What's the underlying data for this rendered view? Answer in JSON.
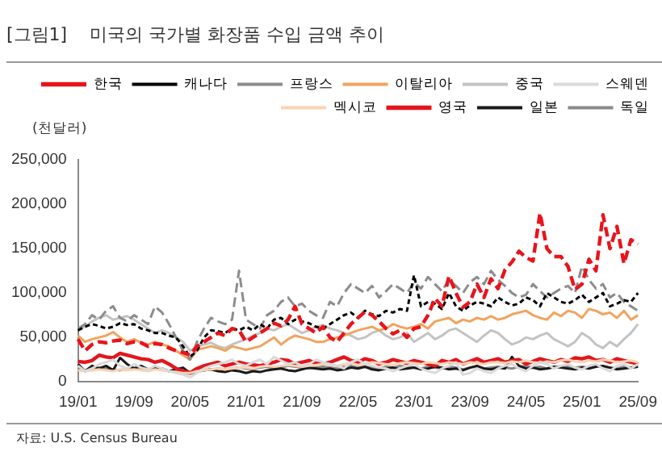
{
  "chart_data": {
    "type": "line",
    "title": "[그림1]    미국의 국가별 화장품 수입 금액 추이",
    "ylabel": "(천달러)",
    "annotations": [
      "자료: U.S. Census Bureau"
    ],
    "categories": [
      "19/01",
      null,
      null,
      null,
      null,
      null,
      null,
      null,
      "19/09",
      null,
      null,
      null,
      null,
      null,
      null,
      null,
      "20/05",
      null,
      null,
      null,
      null,
      null,
      null,
      null,
      "21/01",
      null,
      null,
      null,
      null,
      null,
      null,
      null,
      "21/09",
      null,
      null,
      null,
      null,
      null,
      null,
      null,
      "22/05",
      null,
      null,
      null,
      null,
      null,
      null,
      null,
      "23/01",
      null,
      null,
      null,
      null,
      null,
      null,
      null,
      "23/09",
      null,
      null,
      null,
      null,
      null,
      null,
      null,
      "24/05",
      null,
      null,
      null,
      null,
      null,
      null,
      null,
      "25/01",
      null,
      null,
      null,
      null,
      null,
      null,
      null,
      "25/09"
    ],
    "ylim": [
      0,
      250000
    ],
    "yticks": [
      0,
      {
        "value": 50000,
        "label": "50,000"
      },
      {
        "value": 100000,
        "label": "100,000"
      },
      {
        "value": 150000,
        "label": "150,000"
      },
      {
        "value": 200000,
        "label": "200,000"
      },
      {
        "value": 250000,
        "label": "250,000"
      }
    ],
    "grid": false,
    "legend": "top",
    "marker": "none",
    "series": [
      {
        "name": "한국",
        "color": "#e8141c",
        "line_style": "dashed",
        "values": [
          48000,
          35000,
          42000,
          45000,
          44000,
          46000,
          47000,
          43000,
          45000,
          44000,
          40000,
          43000,
          42000,
          38000,
          35000,
          33000,
          30000,
          40000,
          45000,
          50000,
          55000,
          52000,
          60000,
          58000,
          45000,
          50000,
          55000,
          60000,
          66000,
          63000,
          70000,
          85000,
          65000,
          60000,
          55000,
          62000,
          50000,
          45000,
          55000,
          65000,
          72000,
          79000,
          75000,
          68000,
          60000,
          54000,
          58000,
          50000,
          60000,
          62000,
          75000,
          94000,
          85000,
          119000,
          100000,
          84000,
          90000,
          110000,
          95000,
          116000,
          105000,
          126000,
          135000,
          147000,
          140000,
          136000,
          190000,
          150000,
          141000,
          141000,
          130000,
          104000,
          110000,
          138000,
          125000,
          188000,
          150000,
          175000,
          133000,
          160000,
          155000
        ]
      },
      {
        "name": "캐나다",
        "color": "#000000",
        "line_style": "dotted",
        "values": [
          58000,
          62000,
          65000,
          63000,
          60000,
          62000,
          66000,
          64000,
          65000,
          60000,
          58000,
          55000,
          55000,
          52000,
          50000,
          40000,
          28000,
          35000,
          50000,
          58000,
          57000,
          55000,
          60000,
          58000,
          62000,
          58000,
          65000,
          60000,
          70000,
          72000,
          65000,
          70000,
          68000,
          66000,
          62000,
          60000,
          65000,
          70000,
          75000,
          78000,
          72000,
          80000,
          76000,
          74000,
          80000,
          78000,
          82000,
          80000,
          120000,
          85000,
          90000,
          88000,
          82000,
          100000,
          85000,
          80000,
          86000,
          90000,
          88000,
          85000,
          95000,
          90000,
          86000,
          88000,
          95000,
          92000,
          85000,
          100000,
          95000,
          90000,
          88000,
          92000,
          98000,
          90000,
          95000,
          100000,
          85000,
          88000,
          92000,
          90000,
          100000
        ]
      },
      {
        "name": "프랑스",
        "color": "#8c8c8c",
        "line_style": "dashed",
        "values": [
          60000,
          65000,
          75000,
          70000,
          80000,
          85000,
          72000,
          68000,
          75000,
          70000,
          65000,
          85000,
          78000,
          65000,
          50000,
          35000,
          25000,
          45000,
          60000,
          72000,
          68000,
          65000,
          70000,
          125000,
          70000,
          65000,
          60000,
          75000,
          80000,
          90000,
          95000,
          85000,
          88000,
          80000,
          75000,
          72000,
          90000,
          85000,
          100000,
          110000,
          105000,
          100000,
          108000,
          95000,
          102000,
          110000,
          105000,
          100000,
          112000,
          105000,
          118000,
          110000,
          102000,
          115000,
          108000,
          100000,
          112000,
          118000,
          110000,
          125000,
          115000,
          108000,
          100000,
          95000,
          98000,
          110000,
          102000,
          95000,
          100000,
          105000,
          108000,
          100000,
          130000,
          115000,
          105000,
          110000,
          95000,
          100000,
          90000,
          85000,
          80000
        ]
      },
      {
        "name": "이탈리아",
        "color": "#f2a35e",
        "line_style": "solid",
        "values": [
          52000,
          45000,
          48000,
          50000,
          52000,
          56000,
          50000,
          45000,
          48000,
          44000,
          42000,
          45000,
          42000,
          40000,
          35000,
          30000,
          25000,
          36000,
          38000,
          40000,
          38000,
          35000,
          40000,
          38000,
          36000,
          38000,
          40000,
          45000,
          50000,
          42000,
          48000,
          52000,
          50000,
          48000,
          45000,
          45000,
          48000,
          50000,
          52000,
          55000,
          58000,
          60000,
          62000,
          58000,
          60000,
          65000,
          62000,
          60000,
          62000,
          65000,
          60000,
          68000,
          70000,
          72000,
          66000,
          70000,
          68000,
          72000,
          70000,
          74000,
          70000,
          72000,
          76000,
          78000,
          80000,
          75000,
          72000,
          70000,
          78000,
          74000,
          80000,
          78000,
          72000,
          82000,
          80000,
          76000,
          78000,
          72000,
          80000,
          70000,
          75000
        ]
      },
      {
        "name": "중국",
        "color": "#c3c3c3",
        "line_style": "solid",
        "values": [
          60000,
          62000,
          68000,
          72000,
          75000,
          70000,
          72000,
          74000,
          70000,
          65000,
          60000,
          55000,
          58000,
          55000,
          50000,
          45000,
          35000,
          40000,
          42000,
          44000,
          40000,
          38000,
          42000,
          45000,
          48000,
          52000,
          55000,
          60000,
          58000,
          62000,
          65000,
          60000,
          55000,
          58000,
          62000,
          64000,
          60000,
          58000,
          55000,
          52000,
          48000,
          50000,
          55000,
          58000,
          52000,
          48000,
          50000,
          55000,
          45000,
          50000,
          55000,
          48000,
          52000,
          58000,
          60000,
          55000,
          50000,
          45000,
          52000,
          58000,
          55000,
          48000,
          42000,
          45000,
          50000,
          48000,
          52000,
          55000,
          48000,
          44000,
          40000,
          45000,
          55000,
          50000,
          42000,
          38000,
          45000,
          40000,
          48000,
          55000,
          65000
        ]
      },
      {
        "name": "스웨덴",
        "color": "#dadada",
        "line_style": "solid",
        "values": [
          18000,
          12000,
          15000,
          20000,
          22000,
          25000,
          18000,
          15000,
          20000,
          16000,
          14000,
          18000,
          15000,
          12000,
          10000,
          8000,
          5000,
          10000,
          15000,
          18000,
          20000,
          22000,
          25000,
          20000,
          18000,
          22000,
          25000,
          20000,
          28000,
          24000,
          20000,
          22000,
          18000,
          20000,
          25000,
          22000,
          20000,
          18000,
          15000,
          22000,
          25000,
          20000,
          18000,
          16000,
          15000,
          12000,
          15000,
          18000,
          20000,
          15000,
          12000,
          10000,
          15000,
          18000,
          22000,
          8000,
          10000,
          15000,
          12000,
          10000,
          15000,
          18000,
          20000,
          15000,
          12000,
          18000,
          22000,
          20000,
          15000,
          18000,
          20000,
          16000,
          14000,
          18000,
          20000,
          15000,
          12000,
          18000,
          20000,
          15000,
          20000
        ]
      },
      {
        "name": "멕시코",
        "color": "#fbd3b4",
        "line_style": "solid",
        "values": [
          13000,
          12000,
          13000,
          14000,
          13000,
          12000,
          14000,
          13000,
          14000,
          13000,
          12000,
          14000,
          13000,
          12000,
          11000,
          10000,
          10000,
          12000,
          13000,
          14000,
          15000,
          14000,
          15000,
          16000,
          16000,
          15000,
          17000,
          18000,
          17000,
          18000,
          19000,
          18000,
          17000,
          18000,
          19000,
          20000,
          19000,
          18000,
          20000,
          21000,
          19000,
          20000,
          22000,
          21000,
          20000,
          19000,
          21000,
          22000,
          21000,
          20000,
          22000,
          21000,
          20000,
          22000,
          21000,
          20000,
          22000,
          21000,
          20000,
          22000,
          22000,
          21000,
          23000,
          22000,
          24000,
          22000,
          21000,
          23000,
          22000,
          24000,
          25000,
          23000,
          22000,
          24000,
          23000,
          25000,
          24000,
          22000,
          23000,
          24000,
          22000
        ]
      },
      {
        "name": "영국",
        "color": "#e3161c",
        "line_style": "solid",
        "values": [
          23000,
          22000,
          24000,
          30000,
          28000,
          27000,
          32000,
          30000,
          28000,
          26000,
          25000,
          22000,
          24000,
          20000,
          15000,
          12000,
          10000,
          15000,
          18000,
          20000,
          22000,
          18000,
          20000,
          22000,
          20000,
          19000,
          18000,
          20000,
          22000,
          25000,
          24000,
          20000,
          22000,
          24000,
          21000,
          20000,
          22000,
          25000,
          28000,
          24000,
          22000,
          26000,
          24000,
          20000,
          22000,
          25000,
          23000,
          21000,
          24000,
          22000,
          20000,
          18000,
          24000,
          22000,
          25000,
          20000,
          23000,
          26000,
          22000,
          24000,
          26000,
          22000,
          24000,
          25000,
          20000,
          23000,
          26000,
          24000,
          22000,
          25000,
          23000,
          27000,
          26000,
          28000,
          24000,
          25000,
          22000,
          26000,
          24000,
          22000,
          20000
        ]
      },
      {
        "name": "일본",
        "color": "#1a1a1a",
        "line_style": "solid",
        "values": [
          20000,
          12000,
          18000,
          15000,
          18000,
          13000,
          27000,
          20000,
          15000,
          18000,
          14000,
          16000,
          15000,
          12000,
          14000,
          16000,
          10000,
          12000,
          13000,
          14000,
          12000,
          11000,
          13000,
          12000,
          10000,
          12000,
          11000,
          13000,
          14000,
          15000,
          13000,
          12000,
          14000,
          16000,
          15000,
          14000,
          15000,
          13000,
          14000,
          16000,
          15000,
          17000,
          14000,
          13000,
          15000,
          16000,
          14000,
          15000,
          16000,
          14000,
          15000,
          17000,
          16000,
          14000,
          15000,
          13000,
          16000,
          18000,
          15000,
          14000,
          16000,
          15000,
          28000,
          18000,
          15000,
          16000,
          14000,
          15000,
          17000,
          16000,
          15000,
          14000,
          16000,
          15000,
          17000,
          18000,
          16000,
          14000,
          15000,
          16000,
          17000
        ]
      },
      {
        "name": "독일",
        "color": "#8a8a8a",
        "line_style": "solid",
        "values": [
          15000,
          13000,
          14000,
          16000,
          15000,
          14000,
          13000,
          15000,
          16000,
          14000,
          13000,
          15000,
          14000,
          12000,
          12000,
          10000,
          9000,
          11000,
          13000,
          14000,
          15000,
          14000,
          15000,
          16000,
          15000,
          14000,
          16000,
          17000,
          15000,
          16000,
          18000,
          17000,
          16000,
          15000,
          16000,
          17000,
          16000,
          15000,
          17000,
          18000,
          16000,
          17000,
          16000,
          15000,
          17000,
          16000,
          18000,
          17000,
          16000,
          15000,
          17000,
          16000,
          15000,
          17000,
          16000,
          14000,
          16000,
          17000,
          15000,
          16000,
          17000,
          16000,
          15000,
          17000,
          18000,
          16000,
          17000,
          15000,
          16000,
          18000,
          17000,
          16000,
          17000,
          16000,
          18000,
          17000,
          16000,
          15000,
          17000,
          16000,
          17000
        ]
      }
    ]
  }
}
